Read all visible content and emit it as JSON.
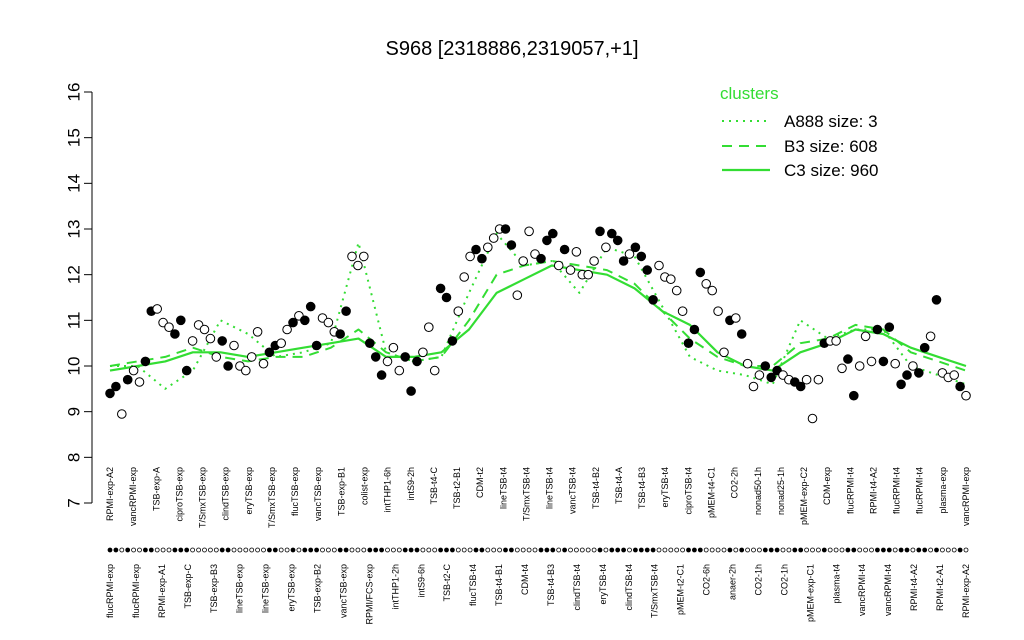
{
  "chart_data": {
    "type": "line",
    "title": "S968 [2318886,2319057,+1]",
    "xlabel": "",
    "ylabel": "",
    "ylim": [
      7,
      16
    ],
    "y_ticks": [
      "7",
      "8",
      "9",
      "10",
      "11",
      "12",
      "13",
      "14",
      "15",
      "16"
    ],
    "legend": {
      "title": "clusters",
      "position": "top-right",
      "entries": [
        {
          "label": "A888 size: 3",
          "style": "dotted"
        },
        {
          "label": "B3 size: 608",
          "style": "dashed"
        },
        {
          "label": "C3 size: 960",
          "style": "solid"
        }
      ]
    },
    "colors": {
      "series": "#33dd33",
      "points": "#000000",
      "open_points": "#ffffff"
    },
    "top_labels": [
      "RPMI-exp-A2",
      "vancRPMI-exp",
      "TSB-exp-A",
      "ciproTSB-exp",
      "T/SmxTSB-exp",
      "clindTSB-exp",
      "eryTSB-exp",
      "T/SmxTSB-exp",
      "flucTSB-exp",
      "vancTSB-exp",
      "TSB-exp-B1",
      "colist-exp",
      "intTHP1-6h",
      "intS9-2h",
      "TSB-t4-C",
      "TSB-t2-B1",
      "CDM-t2",
      "lineTSB-t4",
      "T/SmxTSB-t4",
      "lineTSB-t4",
      "vancTSB-t4",
      "TSB-t4-B2",
      "TSB-t4-A",
      "TSB-t4-B3",
      "eryTSB-t4",
      "ciproTSB-t4",
      "pMEM-t4-C1",
      "CO2-2h",
      "nonad50-1h",
      "nonad25-1h",
      "pMEM-exp-C2",
      "CDM-exp",
      "flucRPMI-t4",
      "RPMI-t4-A2",
      "flucRPMI-t4",
      "flucRPMI-t4",
      "plasma-exp",
      "vancRPMI-exp"
    ],
    "bottom_labels": [
      "flucRPMI-exp",
      "flucRPMI-exp",
      "RPMI-exp-A1",
      "TSB-exp-C",
      "TSB-exp-B3",
      "lineTSB-exp",
      "lineTSB-exp",
      "eryTSB-exp",
      "TSB-exp-B2",
      "vancTSB-exp",
      "RPMI/FCS-exp",
      "intTHP1-2h",
      "intS9-6h",
      "TSB-t2-C",
      "flucTSB-t4",
      "TSB-t4-B1",
      "CDM-t4",
      "TSB-t4-B3",
      "clindTSB-t4",
      "eryTSB-t4",
      "clindTSB-t4",
      "T/SmxTSB-t4",
      "pMEM-t2-C1",
      "CO2-6h",
      "anaer-2h",
      "CO2-1h",
      "CO2-1h",
      "pMEM-exp-C1",
      "plasma-t4",
      "vancRPMI-t4",
      "vancRPMI-t4",
      "RPMI-t4-A2",
      "RPMI-t2-A1",
      "RPMI-exp-A2"
    ],
    "points": [
      {
        "y": 9.4,
        "f": 1
      },
      {
        "y": 9.55,
        "f": 1
      },
      {
        "y": 8.95,
        "f": 0
      },
      {
        "y": 9.7,
        "f": 1
      },
      {
        "y": 9.9,
        "f": 0
      },
      {
        "y": 9.65,
        "f": 0
      },
      {
        "y": 10.1,
        "f": 1
      },
      {
        "y": 11.2,
        "f": 1
      },
      {
        "y": 11.25,
        "f": 0
      },
      {
        "y": 10.95,
        "f": 0
      },
      {
        "y": 10.85,
        "f": 0
      },
      {
        "y": 10.7,
        "f": 1
      },
      {
        "y": 11.0,
        "f": 1
      },
      {
        "y": 9.9,
        "f": 1
      },
      {
        "y": 10.55,
        "f": 0
      },
      {
        "y": 10.9,
        "f": 0
      },
      {
        "y": 10.8,
        "f": 0
      },
      {
        "y": 10.6,
        "f": 0
      },
      {
        "y": 10.2,
        "f": 0
      },
      {
        "y": 10.55,
        "f": 1
      },
      {
        "y": 10.0,
        "f": 1
      },
      {
        "y": 10.45,
        "f": 0
      },
      {
        "y": 10.0,
        "f": 0
      },
      {
        "y": 9.9,
        "f": 0
      },
      {
        "y": 10.2,
        "f": 0
      },
      {
        "y": 10.75,
        "f": 0
      },
      {
        "y": 10.05,
        "f": 0
      },
      {
        "y": 10.3,
        "f": 1
      },
      {
        "y": 10.45,
        "f": 1
      },
      {
        "y": 10.5,
        "f": 0
      },
      {
        "y": 10.8,
        "f": 0
      },
      {
        "y": 10.95,
        "f": 1
      },
      {
        "y": 11.1,
        "f": 0
      },
      {
        "y": 11.0,
        "f": 1
      },
      {
        "y": 11.3,
        "f": 1
      },
      {
        "y": 10.45,
        "f": 1
      },
      {
        "y": 11.05,
        "f": 0
      },
      {
        "y": 10.95,
        "f": 0
      },
      {
        "y": 10.75,
        "f": 0
      },
      {
        "y": 10.7,
        "f": 1
      },
      {
        "y": 11.2,
        "f": 1
      },
      {
        "y": 12.4,
        "f": 0
      },
      {
        "y": 12.2,
        "f": 0
      },
      {
        "y": 12.4,
        "f": 0
      },
      {
        "y": 10.5,
        "f": 1
      },
      {
        "y": 10.2,
        "f": 1
      },
      {
        "y": 9.8,
        "f": 1
      },
      {
        "y": 10.1,
        "f": 0
      },
      {
        "y": 10.4,
        "f": 0
      },
      {
        "y": 9.9,
        "f": 0
      },
      {
        "y": 10.2,
        "f": 1
      },
      {
        "y": 9.45,
        "f": 1
      },
      {
        "y": 10.1,
        "f": 1
      },
      {
        "y": 10.3,
        "f": 0
      },
      {
        "y": 10.85,
        "f": 0
      },
      {
        "y": 9.9,
        "f": 0
      },
      {
        "y": 11.7,
        "f": 1
      },
      {
        "y": 11.5,
        "f": 1
      },
      {
        "y": 10.55,
        "f": 1
      },
      {
        "y": 11.2,
        "f": 0
      },
      {
        "y": 11.95,
        "f": 0
      },
      {
        "y": 12.4,
        "f": 0
      },
      {
        "y": 12.55,
        "f": 1
      },
      {
        "y": 12.35,
        "f": 1
      },
      {
        "y": 12.6,
        "f": 0
      },
      {
        "y": 12.8,
        "f": 0
      },
      {
        "y": 13.0,
        "f": 0
      },
      {
        "y": 13.0,
        "f": 1
      },
      {
        "y": 12.65,
        "f": 1
      },
      {
        "y": 11.55,
        "f": 0
      },
      {
        "y": 12.3,
        "f": 0
      },
      {
        "y": 12.95,
        "f": 0
      },
      {
        "y": 12.45,
        "f": 0
      },
      {
        "y": 12.35,
        "f": 1
      },
      {
        "y": 12.75,
        "f": 1
      },
      {
        "y": 12.9,
        "f": 1
      },
      {
        "y": 12.2,
        "f": 0
      },
      {
        "y": 12.55,
        "f": 1
      },
      {
        "y": 12.1,
        "f": 0
      },
      {
        "y": 12.5,
        "f": 0
      },
      {
        "y": 12.0,
        "f": 0
      },
      {
        "y": 12.0,
        "f": 0
      },
      {
        "y": 12.3,
        "f": 0
      },
      {
        "y": 12.95,
        "f": 1
      },
      {
        "y": 12.6,
        "f": 0
      },
      {
        "y": 12.9,
        "f": 1
      },
      {
        "y": 12.75,
        "f": 1
      },
      {
        "y": 12.3,
        "f": 1
      },
      {
        "y": 12.45,
        "f": 0
      },
      {
        "y": 12.6,
        "f": 1
      },
      {
        "y": 12.4,
        "f": 1
      },
      {
        "y": 12.1,
        "f": 1
      },
      {
        "y": 11.45,
        "f": 1
      },
      {
        "y": 12.2,
        "f": 0
      },
      {
        "y": 11.95,
        "f": 0
      },
      {
        "y": 11.9,
        "f": 0
      },
      {
        "y": 11.65,
        "f": 0
      },
      {
        "y": 11.2,
        "f": 0
      },
      {
        "y": 10.5,
        "f": 1
      },
      {
        "y": 10.8,
        "f": 1
      },
      {
        "y": 12.05,
        "f": 1
      },
      {
        "y": 11.8,
        "f": 0
      },
      {
        "y": 11.65,
        "f": 0
      },
      {
        "y": 11.2,
        "f": 0
      },
      {
        "y": 10.3,
        "f": 0
      },
      {
        "y": 11.0,
        "f": 1
      },
      {
        "y": 11.05,
        "f": 0
      },
      {
        "y": 10.7,
        "f": 1
      },
      {
        "y": 10.05,
        "f": 0
      },
      {
        "y": 9.55,
        "f": 0
      },
      {
        "y": 9.8,
        "f": 0
      },
      {
        "y": 10.0,
        "f": 1
      },
      {
        "y": 9.75,
        "f": 1
      },
      {
        "y": 9.9,
        "f": 1
      },
      {
        "y": 9.8,
        "f": 0
      },
      {
        "y": 9.7,
        "f": 0
      },
      {
        "y": 9.65,
        "f": 1
      },
      {
        "y": 9.55,
        "f": 1
      },
      {
        "y": 9.7,
        "f": 0
      },
      {
        "y": 8.85,
        "f": 0
      },
      {
        "y": 9.7,
        "f": 0
      },
      {
        "y": 10.5,
        "f": 1
      },
      {
        "y": 10.55,
        "f": 0
      },
      {
        "y": 10.55,
        "f": 0
      },
      {
        "y": 9.95,
        "f": 0
      },
      {
        "y": 10.15,
        "f": 1
      },
      {
        "y": 9.35,
        "f": 1
      },
      {
        "y": 10.0,
        "f": 0
      },
      {
        "y": 10.65,
        "f": 0
      },
      {
        "y": 10.1,
        "f": 0
      },
      {
        "y": 10.8,
        "f": 1
      },
      {
        "y": 10.1,
        "f": 1
      },
      {
        "y": 10.85,
        "f": 1
      },
      {
        "y": 10.05,
        "f": 0
      },
      {
        "y": 9.6,
        "f": 1
      },
      {
        "y": 9.8,
        "f": 1
      },
      {
        "y": 10.0,
        "f": 0
      },
      {
        "y": 9.85,
        "f": 1
      },
      {
        "y": 10.4,
        "f": 1
      },
      {
        "y": 10.65,
        "f": 0
      },
      {
        "y": 11.45,
        "f": 1
      },
      {
        "y": 9.85,
        "f": 0
      },
      {
        "y": 9.75,
        "f": 0
      },
      {
        "y": 9.8,
        "f": 0
      },
      {
        "y": 9.55,
        "f": 1
      },
      {
        "y": 9.35,
        "f": 0
      }
    ],
    "series": [
      {
        "name": "A888 size: 3",
        "style": "dotted",
        "values": [
          10.0,
          10.0,
          9.5,
          9.9,
          11.0,
          10.7,
          10.2,
          10.3,
          10.5,
          12.7,
          10.3,
          10.1,
          10.2,
          11.6,
          12.9,
          12.2,
          12.3,
          11.6,
          12.6,
          12.4,
          11.3,
          10.2,
          9.9,
          9.8,
          9.6,
          11.0,
          10.6,
          10.8,
          10.8,
          10.0,
          9.8,
          9.6
        ]
      },
      {
        "name": "B3 size: 608",
        "style": "dashed",
        "values": [
          10.0,
          10.1,
          10.2,
          10.4,
          10.2,
          10.1,
          10.2,
          10.2,
          10.4,
          10.8,
          10.3,
          10.1,
          10.2,
          11.0,
          12.0,
          12.2,
          12.3,
          12.2,
          12.1,
          11.8,
          11.2,
          10.6,
          10.2,
          10.0,
          10.0,
          10.5,
          10.6,
          10.9,
          10.8,
          10.3,
          10.1,
          9.9
        ]
      },
      {
        "name": "C3 size: 960",
        "style": "solid",
        "values": [
          9.9,
          10.0,
          10.1,
          10.3,
          10.3,
          10.2,
          10.3,
          10.4,
          10.5,
          10.6,
          10.2,
          10.2,
          10.3,
          10.8,
          11.6,
          11.9,
          12.2,
          12.1,
          12.0,
          11.7,
          11.2,
          10.9,
          10.3,
          10.0,
          9.9,
          10.3,
          10.5,
          10.8,
          10.7,
          10.4,
          10.2,
          10.0
        ]
      }
    ]
  }
}
